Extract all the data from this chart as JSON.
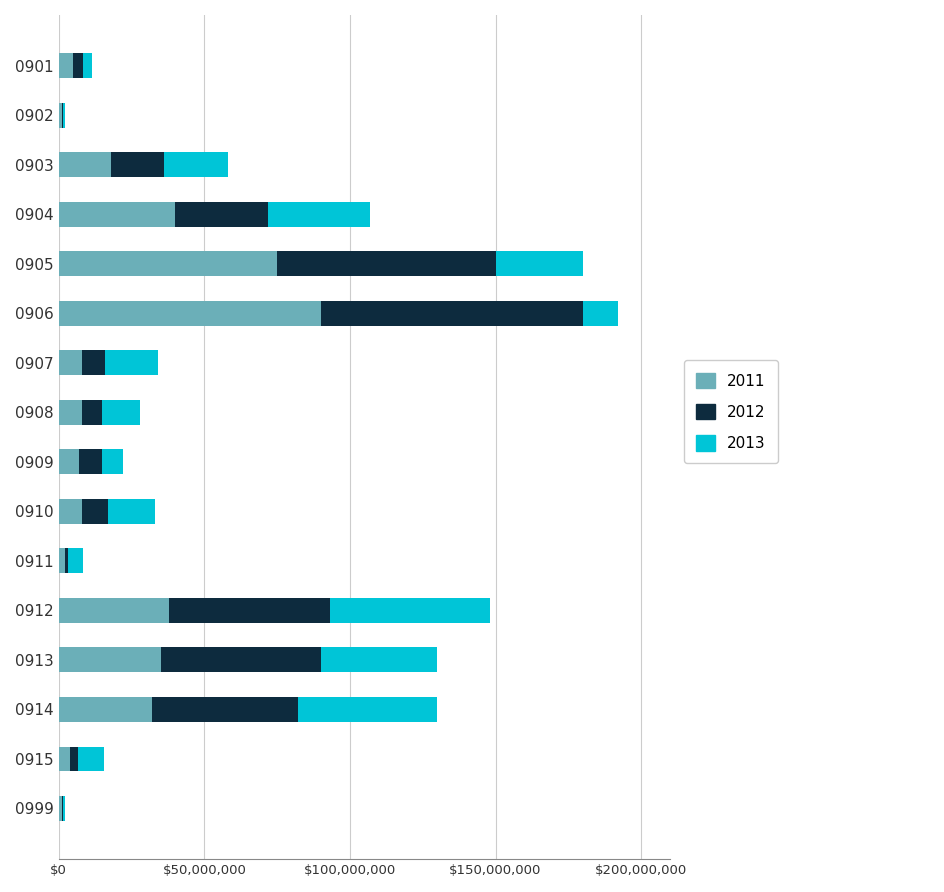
{
  "categories": [
    "0901",
    "0902",
    "0903",
    "0904",
    "0905",
    "0906",
    "0907",
    "0908",
    "0909",
    "0910",
    "0911",
    "0912",
    "0913",
    "0914",
    "0915",
    "0999"
  ],
  "values_2011": [
    5000000,
    1000000,
    18000000,
    40000000,
    75000000,
    90000000,
    8000000,
    8000000,
    7000000,
    8000000,
    2000000,
    38000000,
    35000000,
    32000000,
    4000000,
    1000000
  ],
  "values_2012": [
    3500000,
    500000,
    18000000,
    32000000,
    75000000,
    90000000,
    8000000,
    7000000,
    8000000,
    9000000,
    1200000,
    55000000,
    55000000,
    50000000,
    2500000,
    500000
  ],
  "values_2013": [
    3000000,
    500000,
    22000000,
    35000000,
    30000000,
    12000000,
    18000000,
    13000000,
    7000000,
    16000000,
    5000000,
    55000000,
    40000000,
    48000000,
    9000000,
    500000
  ],
  "color_2011": "#6BAFB8",
  "color_2012": "#0D2B3E",
  "color_2013": "#00C5D7",
  "legend_labels": [
    "2011",
    "2012",
    "2013"
  ],
  "background_color": "#ffffff",
  "grid_color": "#cccccc",
  "tick_label_color": "#333333",
  "xlim": [
    0,
    210000000
  ],
  "xtick_interval": 50000000
}
